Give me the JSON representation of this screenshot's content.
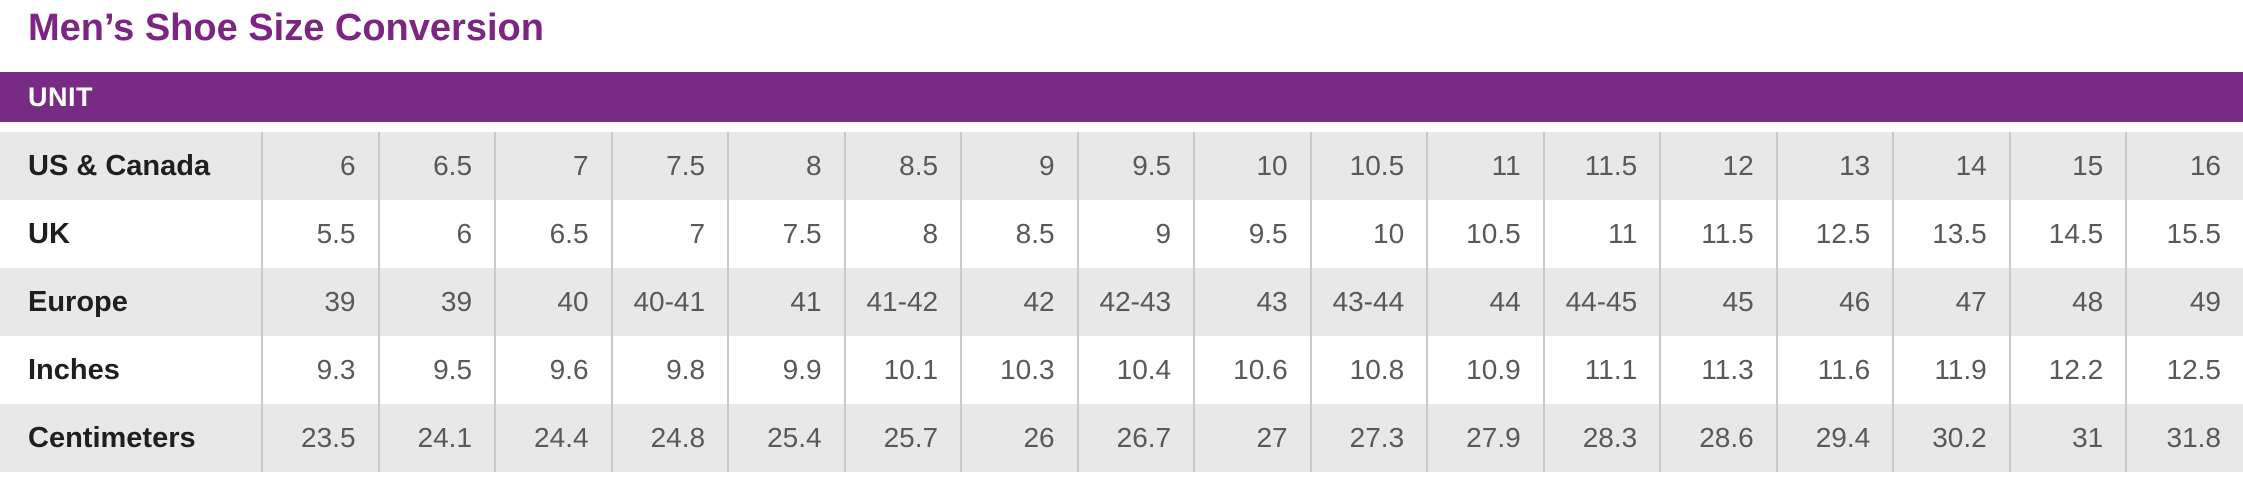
{
  "page": {
    "title": "Men’s Shoe Size Conversion"
  },
  "colors": {
    "title_purple": "#7d2583",
    "header_bar_purple": "#782b85",
    "header_text": "#ffffff",
    "row_alt_gray": "#e8e8e8",
    "row_white": "#ffffff",
    "divider_gray": "#c9c9c9",
    "value_text": "#58595b",
    "label_text": "#1f1f1f"
  },
  "chart_data": {
    "type": "table",
    "title": "Men’s Shoe Size Conversion",
    "unit_label": "UNIT",
    "layout": {
      "label_column_header": "UNIT",
      "columns_count": 17,
      "alternating_rows": true,
      "gray_rows": [
        "US & Canada",
        "Europe",
        "Centimeters"
      ]
    },
    "rows": [
      {
        "label": "US & Canada",
        "values": [
          "6",
          "6.5",
          "7",
          "7.5",
          "8",
          "8.5",
          "9",
          "9.5",
          "10",
          "10.5",
          "11",
          "11.5",
          "12",
          "13",
          "14",
          "15",
          "16"
        ]
      },
      {
        "label": "UK",
        "values": [
          "5.5",
          "6",
          "6.5",
          "7",
          "7.5",
          "8",
          "8.5",
          "9",
          "9.5",
          "10",
          "10.5",
          "11",
          "11.5",
          "12.5",
          "13.5",
          "14.5",
          "15.5"
        ]
      },
      {
        "label": "Europe",
        "values": [
          "39",
          "39",
          "40",
          "40-41",
          "41",
          "41-42",
          "42",
          "42-43",
          "43",
          "43-44",
          "44",
          "44-45",
          "45",
          "46",
          "47",
          "48",
          "49"
        ]
      },
      {
        "label": "Inches",
        "values": [
          "9.3",
          "9.5",
          "9.6",
          "9.8",
          "9.9",
          "10.1",
          "10.3",
          "10.4",
          "10.6",
          "10.8",
          "10.9",
          "11.1",
          "11.3",
          "11.6",
          "11.9",
          "12.2",
          "12.5"
        ]
      },
      {
        "label": "Centimeters",
        "values": [
          "23.5",
          "24.1",
          "24.4",
          "24.8",
          "25.4",
          "25.7",
          "26",
          "26.7",
          "27",
          "27.3",
          "27.9",
          "28.3",
          "28.6",
          "29.4",
          "30.2",
          "31",
          "31.8"
        ]
      }
    ]
  }
}
